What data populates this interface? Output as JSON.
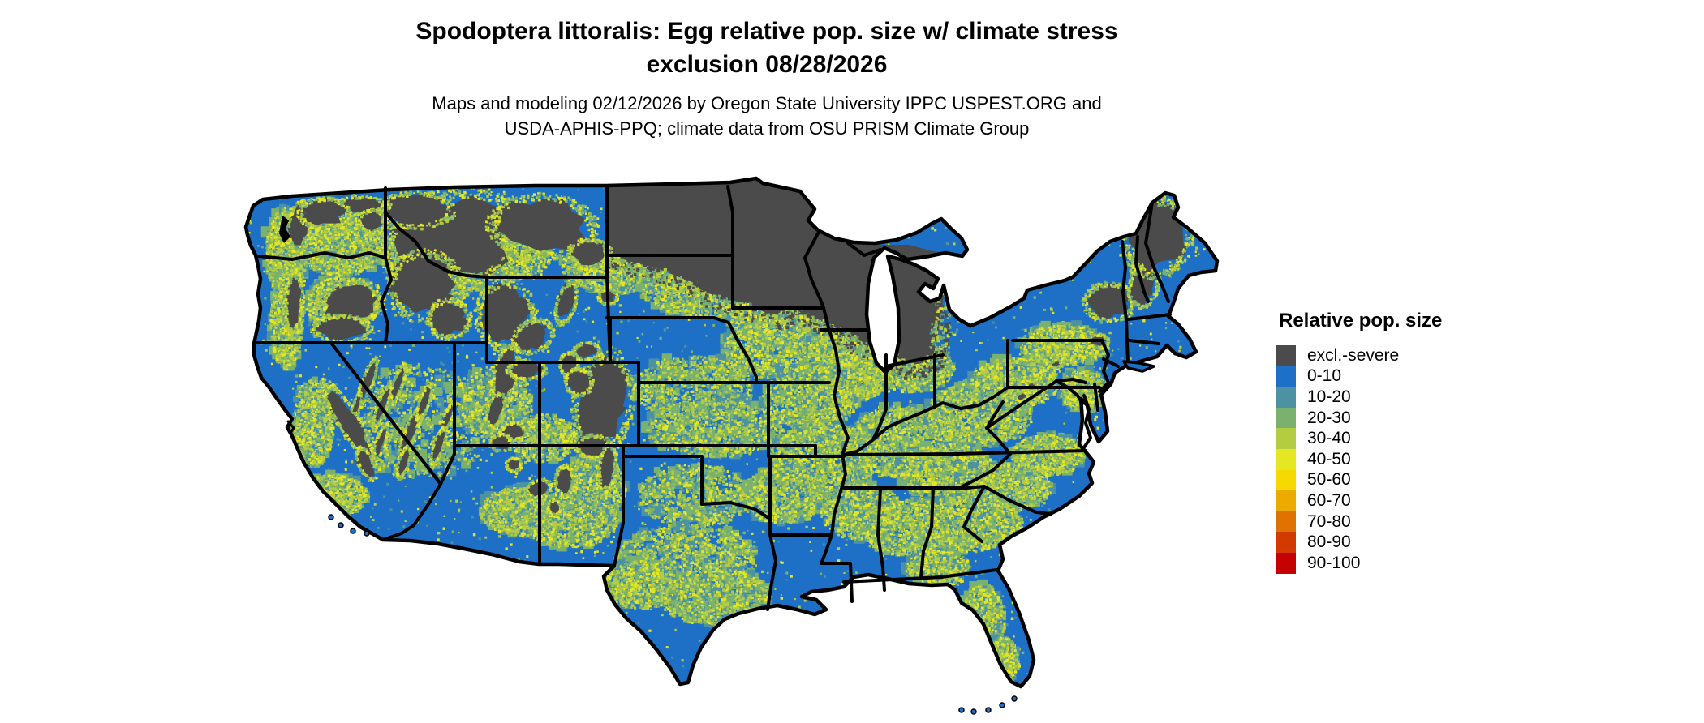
{
  "header": {
    "title_line1": "Spodoptera littoralis: Egg relative pop. size w/ climate stress",
    "title_line2": "exclusion 08/28/2026",
    "subtitle_line1": "Maps and modeling 02/12/2026 by Oregon State University IPPC USPEST.ORG and",
    "subtitle_line2": "USDA-APHIS-PPQ; climate data from OSU PRISM Climate Group"
  },
  "legend": {
    "title": "Relative pop. size",
    "items": [
      {
        "label": "excl.-severe",
        "color": "#4b4b4b"
      },
      {
        "label": "0-10",
        "color": "#1d70c6"
      },
      {
        "label": "10-20",
        "color": "#4c92a3"
      },
      {
        "label": "20-30",
        "color": "#7ab16e"
      },
      {
        "label": "30-40",
        "color": "#b4cc42"
      },
      {
        "label": "40-50",
        "color": "#e6e723"
      },
      {
        "label": "50-60",
        "color": "#f6d900"
      },
      {
        "label": "60-70",
        "color": "#edaa00"
      },
      {
        "label": "70-80",
        "color": "#e07200"
      },
      {
        "label": "80-90",
        "color": "#d23a00"
      },
      {
        "label": "90-100",
        "color": "#c40000"
      }
    ]
  },
  "map": {
    "palette": {
      "base_blue": "#1d70c6",
      "teal": "#4c92a3",
      "green": "#7ab16e",
      "yellow_green": "#b4cc42",
      "yellow": "#e6e723",
      "excluded_gray": "#4b4b4b",
      "water_white": "#ffffff",
      "border_black": "#000000"
    }
  }
}
